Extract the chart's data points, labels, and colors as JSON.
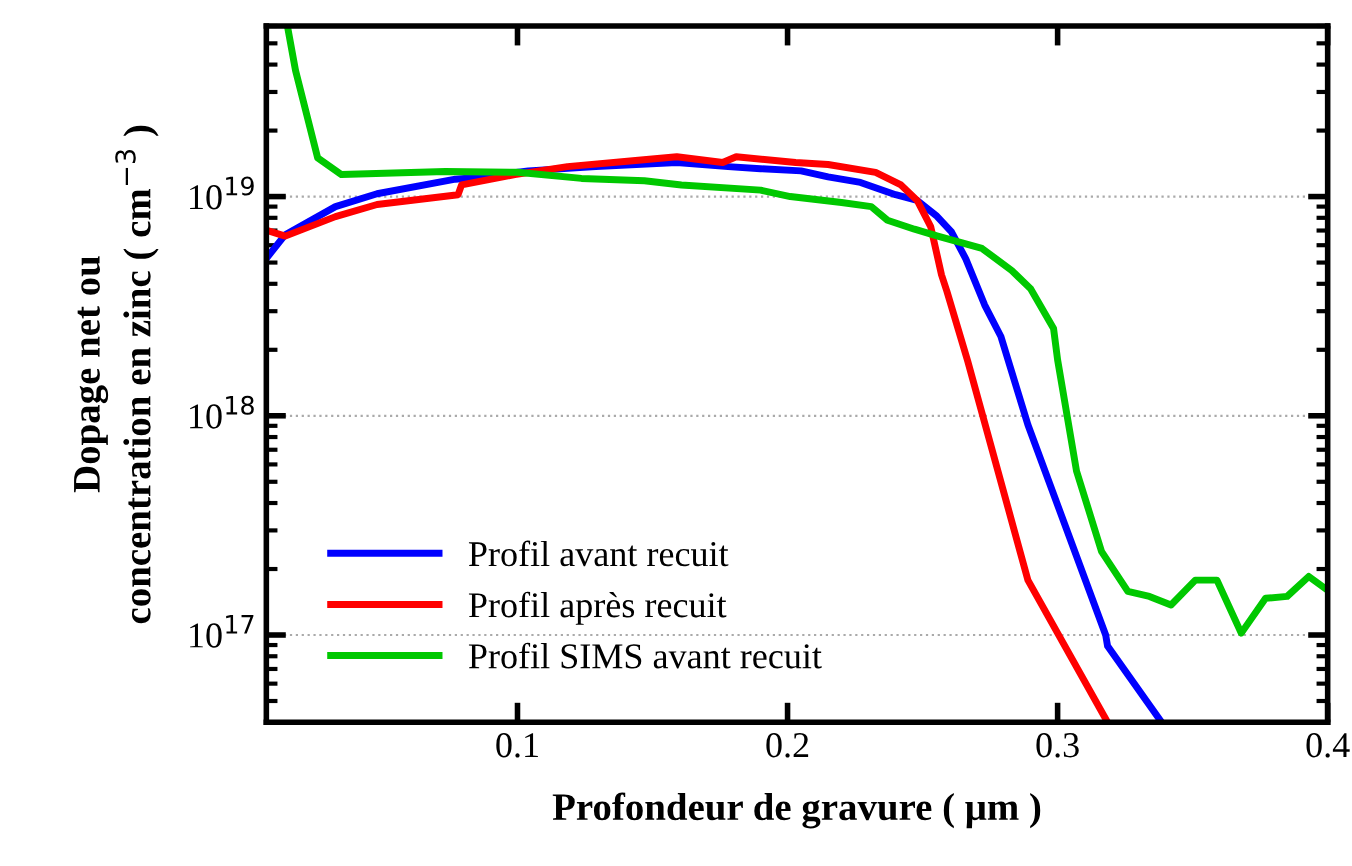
{
  "chart_data": {
    "type": "line",
    "xlabel": "Profondeur de gravure ( μm )",
    "ylabel": "Dopage net ou\nconcentration en zinc ( cm$^{−3}$ )",
    "log": "y",
    "grid": "y",
    "legend": "bottom left",
    "line_style": "solid",
    "marker": "none",
    "xlim": [
      0.007,
      0.4
    ],
    "xticks": [
      0.1,
      0.2,
      0.3,
      0.4
    ],
    "ylim": [
      4e+16,
      6e+19
    ],
    "yticks": [
      {
        "value": 1e+17,
        "label": "10$^{17}$"
      },
      {
        "value": 1e+18,
        "label": "10$^{18}$"
      },
      {
        "value": 1e+19,
        "label": "10$^{19}$"
      }
    ],
    "series": [
      {
        "name": "Profil avant recuit",
        "color": "#0000ff",
        "x": [
          0.0074,
          0.014,
          0.0326,
          0.048,
          0.077,
          0.087,
          0.104,
          0.129,
          0.159,
          0.178,
          0.19,
          0.205,
          0.215,
          0.227,
          0.24,
          0.248,
          0.255,
          0.2607,
          0.266,
          0.273,
          0.279,
          0.289,
          0.3178,
          0.3185,
          0.3385
        ],
        "values": [
          5.3e+18,
          6.7e+18,
          9e+18,
          1.03e+19,
          1.2e+19,
          1.23e+19,
          1.31e+19,
          1.37e+19,
          1.43e+19,
          1.37e+19,
          1.34e+19,
          1.31e+19,
          1.23e+19,
          1.16e+19,
          1.02e+19,
          9.6e+18,
          8.2e+18,
          6.9e+18,
          5.2e+18,
          3.2e+18,
          2.3e+18,
          9.1e+17,
          1e+17,
          8.9e+16,
          4e+16
        ]
      },
      {
        "name": "Profil après recuit",
        "color": "#ff0000",
        "x": [
          0.0074,
          0.014,
          0.0326,
          0.048,
          0.078,
          0.0793,
          0.099,
          0.1185,
          0.1437,
          0.159,
          0.176,
          0.181,
          0.203,
          0.215,
          0.2326,
          0.242,
          0.248,
          0.253,
          0.257,
          0.259,
          0.2667,
          0.289,
          0.3185
        ],
        "values": [
          7e+18,
          6.6e+18,
          8.1e+18,
          9.2e+18,
          1.02e+19,
          1.13e+19,
          1.26e+19,
          1.37e+19,
          1.46e+19,
          1.52e+19,
          1.43e+19,
          1.52e+19,
          1.43e+19,
          1.4e+19,
          1.29e+19,
          1.13e+19,
          9.6e+18,
          7.3e+18,
          4.4e+18,
          3.7e+18,
          1.78e+18,
          1.78e+17,
          4e+16
        ]
      },
      {
        "name": "Profil SIMS avant recuit",
        "color": "#00c800",
        "x": [
          0.0148,
          0.0178,
          0.026,
          0.0348,
          0.0733,
          0.1,
          0.1237,
          0.147,
          0.1607,
          0.19,
          0.201,
          0.22,
          0.231,
          0.237,
          0.247,
          0.2556,
          0.272,
          0.283,
          0.29,
          0.2985,
          0.3,
          0.307,
          0.3163,
          0.326,
          0.334,
          0.342,
          0.351,
          0.359,
          0.368,
          0.377,
          0.385,
          0.393,
          0.4
        ],
        "values": [
          6e+19,
          3.76e+19,
          1.5e+19,
          1.26e+19,
          1.3e+19,
          1.29e+19,
          1.21e+19,
          1.18e+19,
          1.13e+19,
          1.07e+19,
          1e+19,
          9.4e+18,
          9e+18,
          7.8e+18,
          7.1e+18,
          6.6e+18,
          5.8e+18,
          4.6e+18,
          3.8e+18,
          2.5e+18,
          1.8e+18,
          5.6e+17,
          2.4e+17,
          1.58e+17,
          1.5e+17,
          1.37e+17,
          1.78e+17,
          1.78e+17,
          1.02e+17,
          1.47e+17,
          1.5e+17,
          1.85e+17,
          1.6e+17
        ]
      }
    ]
  }
}
